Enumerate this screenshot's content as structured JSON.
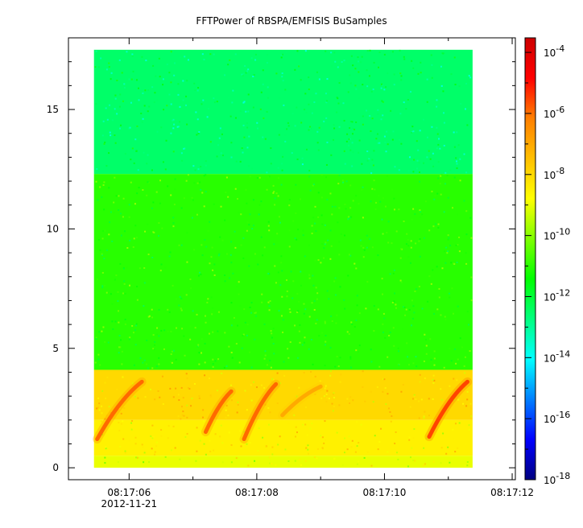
{
  "chart_data": {
    "type": "heatmap",
    "title": "FFTPower of RBSPA/EMFISIS  BuSamples",
    "xlabel": "",
    "ylabel": "",
    "x_range_seconds": [
      "08:17:05.05",
      "08:17:12.05"
    ],
    "data_x_range": [
      "08:17:05.45",
      "08:17:11.38"
    ],
    "ylim": [
      -0.5,
      18
    ],
    "data_y_range": [
      0,
      17.5
    ],
    "y_ticks": [
      0,
      5,
      10,
      15
    ],
    "x_ticks": [
      {
        "label": "08:17:06",
        "sublabel": "2012-11-21"
      },
      {
        "label": "08:17:08",
        "sublabel": ""
      },
      {
        "label": "08:17:10",
        "sublabel": ""
      },
      {
        "label": "08:17:12",
        "sublabel": ""
      }
    ],
    "colorbar": {
      "scale": "log",
      "range": [
        "1e-18",
        "3e-4"
      ],
      "ticks": [
        {
          "base": "10",
          "exp": "-4"
        },
        {
          "base": "10",
          "exp": "-6"
        },
        {
          "base": "10",
          "exp": "-8"
        },
        {
          "base": "10",
          "exp": "-10"
        },
        {
          "base": "10",
          "exp": "-12"
        },
        {
          "base": "10",
          "exp": "-14"
        },
        {
          "base": "10",
          "exp": "-16"
        },
        {
          "base": "10",
          "exp": "-18"
        }
      ],
      "colormap": [
        "#00007f",
        "#0000ff",
        "#007fff",
        "#00ffff",
        "#00ff7f",
        "#00ff00",
        "#7fff00",
        "#ffff00",
        "#ffbf00",
        "#ff7f00",
        "#ff0000",
        "#cc0000"
      ]
    },
    "regions": [
      {
        "y_range": [
          12.3,
          17.5
        ],
        "log10_power": -12.5
      },
      {
        "y_range": [
          4.1,
          12.3
        ],
        "log10_power": -11
      },
      {
        "y_range": [
          2.0,
          4.1
        ],
        "log10_power": -8
      },
      {
        "y_range": [
          0.5,
          2.0
        ],
        "log10_power": -8.5
      },
      {
        "y_range": [
          0,
          0.5
        ],
        "log10_power": -9
      }
    ],
    "chorus_bursts": [
      {
        "t_start": "08:17:05.5",
        "t_end": "08:17:06.2",
        "f_high": 3.6,
        "f_low": 1.2,
        "log10_power": -5.5
      },
      {
        "t_start": "08:17:07.2",
        "t_end": "08:17:07.6",
        "f_high": 3.2,
        "f_low": 1.5,
        "log10_power": -5.5
      },
      {
        "t_start": "08:17:07.8",
        "t_end": "08:17:08.3",
        "f_high": 3.5,
        "f_low": 1.2,
        "log10_power": -5.5
      },
      {
        "t_start": "08:17:08.4",
        "t_end": "08:17:09.0",
        "f_high": 3.4,
        "f_low": 2.2,
        "log10_power": -6.5
      },
      {
        "t_start": "08:17:10.7",
        "t_end": "08:17:11.3",
        "f_high": 3.6,
        "f_low": 1.3,
        "log10_power": -5
      }
    ]
  }
}
